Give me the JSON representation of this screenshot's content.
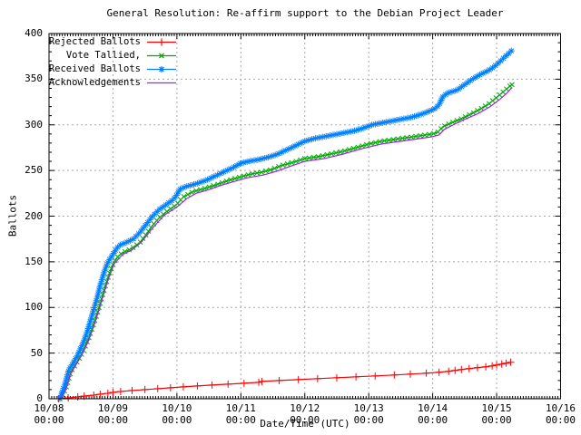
{
  "title": "General Resolution: Re-affirm support to the Debian Project Leader",
  "axes": {
    "xlabel": "Date/Time (UTC)",
    "ylabel": "Ballots",
    "x_tick_dates": [
      "10/08",
      "10/09",
      "10/10",
      "10/11",
      "10/12",
      "10/13",
      "10/14",
      "10/15",
      "10/16"
    ],
    "x_tick_time": "00:00",
    "y_ticks": [
      0,
      50,
      100,
      150,
      200,
      250,
      300,
      350,
      400
    ]
  },
  "colors": {
    "background": "#ffffff",
    "border": "#000000",
    "grid": "#a8a8a8",
    "text": "#000000",
    "rejected": "#ff0000",
    "tallied": "#00a800",
    "received": "#0080ff",
    "acknowledgements": "#a020f0"
  },
  "chart_data": {
    "type": "line",
    "title": "General Resolution: Re-affirm support to the Debian Project Leader",
    "xlabel": "Date/Time (UTC)",
    "ylabel": "Ballots",
    "x_unit": "days since 10/08 00:00 UTC",
    "xlim": [
      0,
      8
    ],
    "ylim": [
      0,
      400
    ],
    "grid": true,
    "legend_position": "top-left",
    "series": [
      {
        "name": "Rejected Ballots",
        "color": "#ff0000",
        "marker": "plus",
        "marker_mode": "points",
        "points": [
          [
            0.15,
            0
          ],
          [
            0.3,
            1
          ],
          [
            0.45,
            2
          ],
          [
            0.55,
            3
          ],
          [
            0.7,
            4
          ],
          [
            0.8,
            5
          ],
          [
            0.92,
            6
          ],
          [
            1.0,
            7
          ],
          [
            1.12,
            8
          ],
          [
            1.3,
            9
          ],
          [
            1.5,
            10
          ],
          [
            1.7,
            11
          ],
          [
            1.9,
            12
          ],
          [
            2.1,
            13
          ],
          [
            2.32,
            14
          ],
          [
            2.55,
            15
          ],
          [
            2.8,
            16
          ],
          [
            3.05,
            17
          ],
          [
            3.28,
            18
          ],
          [
            3.33,
            19
          ],
          [
            3.6,
            20
          ],
          [
            3.9,
            21
          ],
          [
            4.2,
            22
          ],
          [
            4.5,
            23
          ],
          [
            4.8,
            24
          ],
          [
            5.1,
            25
          ],
          [
            5.4,
            26
          ],
          [
            5.65,
            27
          ],
          [
            5.9,
            28
          ],
          [
            6.1,
            29
          ],
          [
            6.25,
            30
          ],
          [
            6.35,
            31
          ],
          [
            6.45,
            32
          ],
          [
            6.57,
            33
          ],
          [
            6.7,
            34
          ],
          [
            6.83,
            35
          ],
          [
            6.93,
            36
          ],
          [
            7.0,
            37
          ],
          [
            7.08,
            38
          ],
          [
            7.15,
            39
          ],
          [
            7.22,
            40
          ]
        ]
      },
      {
        "name": "Vote Tallied,",
        "color": "#00a800",
        "marker": "cross",
        "marker_mode": "dense",
        "points": [
          [
            0.17,
            0
          ],
          [
            0.21,
            4
          ],
          [
            0.25,
            9
          ],
          [
            0.29,
            17
          ],
          [
            0.33,
            27
          ],
          [
            0.37,
            33
          ],
          [
            0.42,
            38
          ],
          [
            0.47,
            44
          ],
          [
            0.52,
            50
          ],
          [
            0.57,
            58
          ],
          [
            0.62,
            66
          ],
          [
            0.67,
            76
          ],
          [
            0.72,
            86
          ],
          [
            0.77,
            97
          ],
          [
            0.82,
            109
          ],
          [
            0.87,
            121
          ],
          [
            0.92,
            132
          ],
          [
            0.97,
            142
          ],
          [
            1.02,
            150
          ],
          [
            1.08,
            156
          ],
          [
            1.15,
            160
          ],
          [
            1.28,
            164
          ],
          [
            1.42,
            171
          ],
          [
            1.52,
            180
          ],
          [
            1.62,
            190
          ],
          [
            1.72,
            198
          ],
          [
            1.82,
            204
          ],
          [
            1.92,
            209
          ],
          [
            2.0,
            213
          ],
          [
            2.1,
            221
          ],
          [
            2.26,
            227
          ],
          [
            2.42,
            230
          ],
          [
            2.6,
            234
          ],
          [
            2.8,
            239
          ],
          [
            3.0,
            243
          ],
          [
            3.15,
            246
          ],
          [
            3.32,
            248
          ],
          [
            3.48,
            251
          ],
          [
            3.62,
            255
          ],
          [
            3.82,
            259
          ],
          [
            4.0,
            263
          ],
          [
            4.2,
            265
          ],
          [
            4.4,
            268
          ],
          [
            4.6,
            271
          ],
          [
            4.8,
            275
          ],
          [
            5.0,
            279
          ],
          [
            5.2,
            282
          ],
          [
            5.4,
            284
          ],
          [
            5.6,
            286
          ],
          [
            5.8,
            288
          ],
          [
            6.0,
            290
          ],
          [
            6.08,
            292
          ],
          [
            6.16,
            298
          ],
          [
            6.32,
            303
          ],
          [
            6.46,
            307
          ],
          [
            6.6,
            312
          ],
          [
            6.74,
            317
          ],
          [
            6.88,
            323
          ],
          [
            7.0,
            330
          ],
          [
            7.1,
            336
          ],
          [
            7.2,
            342
          ],
          [
            7.24,
            344
          ]
        ]
      },
      {
        "name": "Received Ballots",
        "color": "#0080ff",
        "marker": "star",
        "marker_mode": "dense",
        "points": [
          [
            0.17,
            0
          ],
          [
            0.19,
            4
          ],
          [
            0.22,
            10
          ],
          [
            0.25,
            16
          ],
          [
            0.28,
            24
          ],
          [
            0.31,
            32
          ],
          [
            0.35,
            36
          ],
          [
            0.4,
            42
          ],
          [
            0.45,
            48
          ],
          [
            0.5,
            56
          ],
          [
            0.55,
            64
          ],
          [
            0.6,
            74
          ],
          [
            0.65,
            86
          ],
          [
            0.7,
            98
          ],
          [
            0.75,
            110
          ],
          [
            0.8,
            124
          ],
          [
            0.85,
            136
          ],
          [
            0.9,
            146
          ],
          [
            0.95,
            153
          ],
          [
            1.0,
            158
          ],
          [
            1.05,
            164
          ],
          [
            1.1,
            168
          ],
          [
            1.2,
            171
          ],
          [
            1.32,
            175
          ],
          [
            1.42,
            182
          ],
          [
            1.52,
            191
          ],
          [
            1.62,
            200
          ],
          [
            1.72,
            207
          ],
          [
            1.82,
            212
          ],
          [
            1.92,
            217
          ],
          [
            1.98,
            221
          ],
          [
            2.04,
            229
          ],
          [
            2.12,
            232
          ],
          [
            2.28,
            235
          ],
          [
            2.45,
            239
          ],
          [
            2.6,
            244
          ],
          [
            2.75,
            249
          ],
          [
            2.9,
            254
          ],
          [
            3.0,
            258
          ],
          [
            3.12,
            260
          ],
          [
            3.28,
            262
          ],
          [
            3.45,
            265
          ],
          [
            3.58,
            268
          ],
          [
            3.7,
            272
          ],
          [
            3.85,
            277
          ],
          [
            4.0,
            282
          ],
          [
            4.15,
            285
          ],
          [
            4.3,
            287
          ],
          [
            4.45,
            289
          ],
          [
            4.6,
            291
          ],
          [
            4.75,
            293
          ],
          [
            4.9,
            296
          ],
          [
            5.05,
            300
          ],
          [
            5.2,
            302
          ],
          [
            5.35,
            304
          ],
          [
            5.5,
            306
          ],
          [
            5.65,
            308
          ],
          [
            5.8,
            311
          ],
          [
            5.95,
            315
          ],
          [
            6.04,
            318
          ],
          [
            6.1,
            322
          ],
          [
            6.16,
            331
          ],
          [
            6.24,
            335
          ],
          [
            6.38,
            338
          ],
          [
            6.5,
            344
          ],
          [
            6.62,
            350
          ],
          [
            6.74,
            355
          ],
          [
            6.86,
            359
          ],
          [
            6.95,
            363
          ],
          [
            7.05,
            369
          ],
          [
            7.12,
            374
          ],
          [
            7.2,
            379
          ],
          [
            7.23,
            381
          ]
        ]
      },
      {
        "name": "Acknowledgements",
        "color": "#a020f0",
        "marker": "none",
        "marker_mode": "none",
        "points": [
          [
            0.17,
            0
          ],
          [
            0.25,
            8
          ],
          [
            0.33,
            26
          ],
          [
            0.42,
            37
          ],
          [
            0.52,
            49
          ],
          [
            0.62,
            64
          ],
          [
            0.72,
            84
          ],
          [
            0.82,
            107
          ],
          [
            0.92,
            130
          ],
          [
            1.02,
            148
          ],
          [
            1.15,
            158
          ],
          [
            1.3,
            163
          ],
          [
            1.45,
            172
          ],
          [
            1.62,
            187
          ],
          [
            1.8,
            201
          ],
          [
            2.0,
            210
          ],
          [
            2.15,
            219
          ],
          [
            2.3,
            225
          ],
          [
            2.5,
            229
          ],
          [
            2.7,
            234
          ],
          [
            2.9,
            238
          ],
          [
            3.1,
            242
          ],
          [
            3.35,
            245
          ],
          [
            3.55,
            249
          ],
          [
            3.75,
            254
          ],
          [
            4.0,
            260
          ],
          [
            4.3,
            263
          ],
          [
            4.6,
            268
          ],
          [
            4.9,
            274
          ],
          [
            5.2,
            279
          ],
          [
            5.5,
            282
          ],
          [
            5.8,
            285
          ],
          [
            6.0,
            287
          ],
          [
            6.1,
            289
          ],
          [
            6.18,
            295
          ],
          [
            6.35,
            301
          ],
          [
            6.5,
            306
          ],
          [
            6.7,
            312
          ],
          [
            6.9,
            320
          ],
          [
            7.05,
            328
          ],
          [
            7.15,
            334
          ],
          [
            7.24,
            341
          ]
        ]
      }
    ]
  }
}
